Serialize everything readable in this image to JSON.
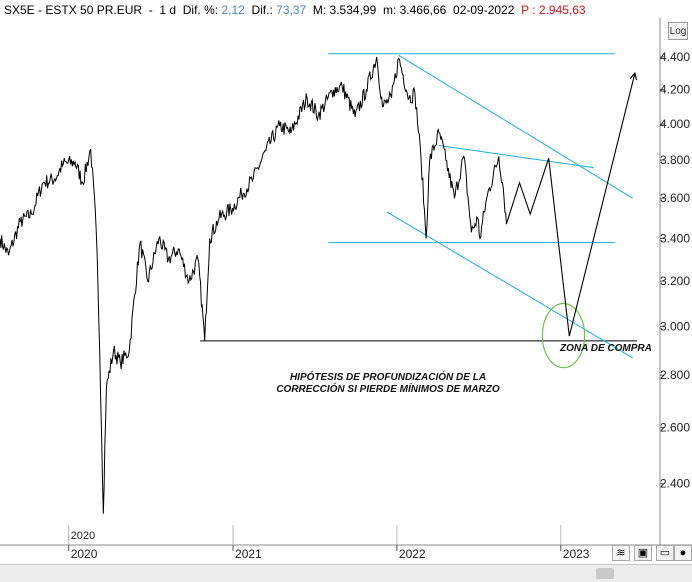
{
  "header": {
    "symbol": "SX5E - ESTX 50 PR.EUR",
    "interval": "1 d",
    "dif_pct_label": "Dif. %:",
    "dif_pct": "2,12",
    "dif_label": "Dif.:",
    "dif": "73,37",
    "max_label": "M:",
    "max": "3.534,99",
    "min_label": "m:",
    "min": "3.466,66",
    "date": "02-09-2022",
    "price_label": "P :",
    "price": "2.945,63"
  },
  "log_button": "Log",
  "annotations": {
    "zona": "ZONA DE COMPRA",
    "hypothesis_line1": "HIPÓTESIS DE PROFUNDIZACIÓN DE LA",
    "hypothesis_line2": "CORRECCIÓN SI PIERDE MÍNIMOS DE MARZO"
  },
  "colors": {
    "price_line": "#000000",
    "channel": "#1ab0dc",
    "support": "#000000",
    "ellipse": "#6cc04a",
    "header_value": "#4a86c8",
    "header_price": "#e01010"
  },
  "chart_data": {
    "type": "line",
    "title": "SX5E - ESTX 50 PR.EUR",
    "ylabel": "",
    "xlabel": "",
    "yscale": "log",
    "ylim": [
      2200,
      4650
    ],
    "y_ticks": [
      "4.400",
      "4.200",
      "4.000",
      "3.800",
      "3.600",
      "3.400",
      "3.200",
      "3.000",
      "2.800",
      "2.600",
      "2.400"
    ],
    "y_tick_values": [
      4400,
      4200,
      4000,
      3800,
      3600,
      3400,
      3200,
      3000,
      2800,
      2600,
      2400
    ],
    "x_ticks": [
      "2020",
      "2021",
      "2022",
      "2023"
    ],
    "x_tick_dates": [
      "2020-01-01",
      "2021-01-01",
      "2022-01-01",
      "2023-01-01"
    ],
    "x_label_top": "2020",
    "price_series": {
      "name": "SX5E",
      "points": [
        [
          "2019-08-01",
          3400
        ],
        [
          "2019-08-20",
          3320
        ],
        [
          "2019-09-15",
          3480
        ],
        [
          "2019-10-10",
          3520
        ],
        [
          "2019-11-05",
          3680
        ],
        [
          "2019-12-01",
          3700
        ],
        [
          "2019-12-20",
          3780
        ],
        [
          "2020-01-15",
          3790
        ],
        [
          "2020-02-01",
          3680
        ],
        [
          "2020-02-19",
          3860
        ],
        [
          "2020-03-02",
          3450
        ],
        [
          "2020-03-10",
          2900
        ],
        [
          "2020-03-18",
          2300
        ],
        [
          "2020-03-25",
          2750
        ],
        [
          "2020-04-10",
          2900
        ],
        [
          "2020-04-25",
          2850
        ],
        [
          "2020-05-15",
          2900
        ],
        [
          "2020-06-08",
          3380
        ],
        [
          "2020-06-25",
          3200
        ],
        [
          "2020-07-20",
          3400
        ],
        [
          "2020-08-10",
          3300
        ],
        [
          "2020-09-01",
          3350
        ],
        [
          "2020-09-25",
          3200
        ],
        [
          "2020-10-15",
          3300
        ],
        [
          "2020-10-30",
          2940
        ],
        [
          "2020-11-10",
          3400
        ],
        [
          "2020-12-01",
          3500
        ],
        [
          "2020-12-31",
          3550
        ],
        [
          "2021-01-20",
          3620
        ],
        [
          "2021-02-15",
          3700
        ],
        [
          "2021-03-15",
          3850
        ],
        [
          "2021-04-15",
          3990
        ],
        [
          "2021-05-10",
          3950
        ],
        [
          "2021-06-15",
          4150
        ],
        [
          "2021-07-10",
          4050
        ],
        [
          "2021-08-13",
          4200
        ],
        [
          "2021-09-01",
          4220
        ],
        [
          "2021-09-30",
          4040
        ],
        [
          "2021-10-25",
          4200
        ],
        [
          "2021-11-17",
          4400
        ],
        [
          "2021-11-30",
          4100
        ],
        [
          "2021-12-20",
          4150
        ],
        [
          "2022-01-05",
          4390
        ],
        [
          "2022-01-28",
          4150
        ],
        [
          "2022-02-10",
          4180
        ],
        [
          "2022-02-24",
          3800
        ],
        [
          "2022-03-07",
          3400
        ],
        [
          "2022-03-15",
          3800
        ],
        [
          "2022-04-05",
          3950
        ],
        [
          "2022-04-20",
          3800
        ],
        [
          "2022-05-09",
          3600
        ],
        [
          "2022-05-30",
          3820
        ],
        [
          "2022-06-16",
          3430
        ],
        [
          "2022-06-30",
          3500
        ],
        [
          "2022-07-05",
          3400
        ],
        [
          "2022-07-20",
          3600
        ],
        [
          "2022-08-16",
          3820
        ],
        [
          "2022-08-26",
          3650
        ],
        [
          "2022-09-02",
          3470
        ]
      ]
    },
    "projection_path": {
      "points": [
        [
          "2022-09-02",
          3470
        ],
        [
          "2022-10-01",
          3680
        ],
        [
          "2022-10-25",
          3520
        ],
        [
          "2022-12-05",
          3810
        ],
        [
          "2023-01-20",
          2960
        ],
        [
          "2023-06-15",
          4300
        ]
      ]
    },
    "support_levels": [
      {
        "value": 4420,
        "from": "2021-08-01",
        "to": "2023-05-01"
      },
      {
        "value": 3380,
        "from": "2021-08-01",
        "to": "2023-05-01"
      }
    ],
    "support_line": {
      "value": 2940,
      "from": "2020-10-20",
      "to": "2023-06-20"
    },
    "channel_lines": [
      {
        "from": [
          "2022-01-05",
          4410
        ],
        "to": [
          "2023-06-10",
          3600
        ]
      },
      {
        "from": [
          "2021-12-10",
          3530
        ],
        "to": [
          "2023-06-10",
          2870
        ]
      },
      {
        "from": [
          "2022-04-05",
          3880
        ],
        "to": [
          "2023-03-15",
          3760
        ]
      }
    ],
    "ellipse": {
      "center": [
        "2023-01-07",
        2960
      ],
      "rx_days": 47,
      "ry_value_span": [
        2830,
        3100
      ]
    }
  }
}
